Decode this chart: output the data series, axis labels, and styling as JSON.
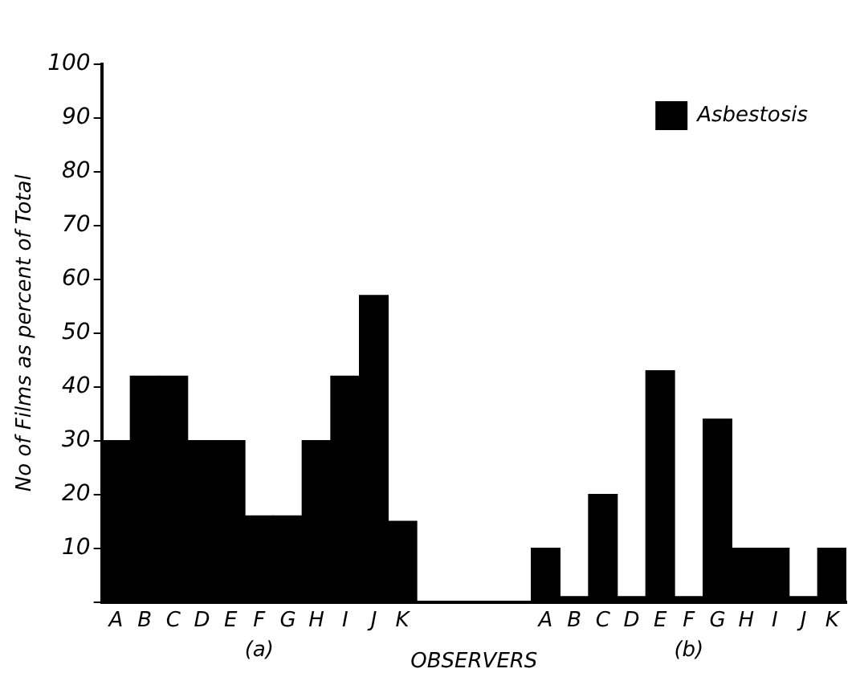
{
  "chart_data": {
    "type": "bar",
    "ylabel": "No of Films as percent of Total",
    "xlabel": "OBSERVERS",
    "categories": [
      "A",
      "B",
      "C",
      "D",
      "E",
      "F",
      "G",
      "H",
      "I",
      "J",
      "K",
      null,
      null,
      null,
      null,
      "A",
      "B",
      "C",
      "D",
      "E",
      "F",
      "G",
      "H",
      "I",
      "J",
      "K"
    ],
    "series": [
      {
        "name": "Asbestosis",
        "color": "#000000",
        "values": [
          30,
          42,
          42,
          30,
          30,
          16,
          16,
          30,
          42,
          57,
          15,
          null,
          null,
          null,
          null,
          10,
          1,
          20,
          1,
          43,
          1,
          34,
          10,
          10,
          1,
          10
        ]
      }
    ],
    "ylim": [
      0,
      100
    ],
    "yticks": [
      {
        "value": 0,
        "label": null
      },
      10,
      20,
      30,
      40,
      50,
      60,
      70,
      80,
      90,
      100
    ],
    "annotations": [
      "(a)",
      "(b)"
    ],
    "grid": false,
    "legend": "top right"
  }
}
